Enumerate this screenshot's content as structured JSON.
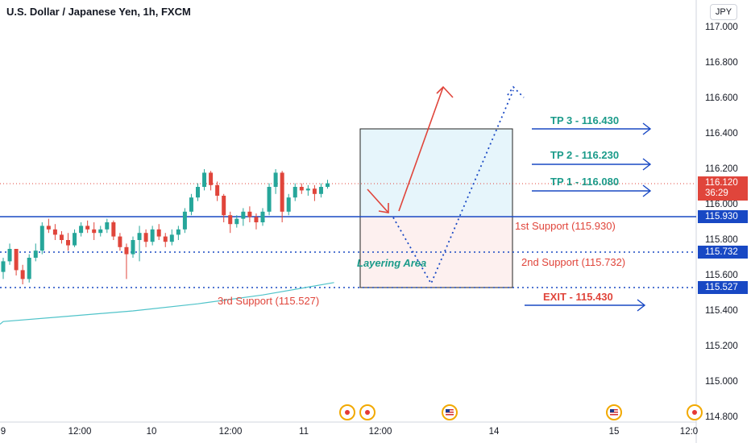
{
  "title": "U.S. Dollar / Japanese Yen, 1h, FXCM",
  "currency": "JPY",
  "colors": {
    "up": "#26a69a",
    "down": "#e0453b",
    "blue": "#1848c4",
    "ma": "#4fc3c9",
    "tp_text": "#1b9b8a",
    "support_text": "#e0453b"
  },
  "price_tags": [
    {
      "label": "116.120",
      "sub": "36:29",
      "value": 116.12,
      "color": "#e0453b"
    },
    {
      "label": "115.930",
      "value": 115.93,
      "color": "#1848c4"
    },
    {
      "label": "115.732",
      "value": 115.732,
      "color": "#1848c4"
    },
    {
      "label": "115.527",
      "value": 115.527,
      "color": "#1848c4"
    }
  ],
  "chart_data": {
    "type": "candlestick",
    "title": "U.S. Dollar / Japanese Yen, 1h, FXCM",
    "ylim": [
      114.75,
      117.15
    ],
    "yticks": [
      "117.000",
      "116.800",
      "116.600",
      "116.400",
      "116.200",
      "116.000",
      "115.800",
      "115.600",
      "115.400",
      "115.200",
      "115.000",
      "114.800"
    ],
    "ytick_values": [
      117.0,
      116.8,
      116.6,
      116.4,
      116.2,
      116.0,
      115.8,
      115.6,
      115.4,
      115.2,
      115.0,
      114.8
    ],
    "xticks": [
      "9",
      "12:00",
      "10",
      "12:00",
      "11",
      "12:00",
      "14",
      "15",
      "12:0"
    ],
    "xtick_values": [
      0,
      16,
      32,
      48,
      64,
      80,
      96,
      112,
      128
    ],
    "candles": [
      [
        115.62,
        115.7,
        115.58,
        115.68
      ],
      [
        115.68,
        115.78,
        115.66,
        115.75
      ],
      [
        115.75,
        115.74,
        115.6,
        115.63
      ],
      [
        115.63,
        115.66,
        115.55,
        115.58
      ],
      [
        115.58,
        115.72,
        115.56,
        115.7
      ],
      [
        115.7,
        115.78,
        115.68,
        115.74
      ],
      [
        115.74,
        115.9,
        115.72,
        115.88
      ],
      [
        115.88,
        115.92,
        115.84,
        115.86
      ],
      [
        115.86,
        115.89,
        115.8,
        115.83
      ],
      [
        115.83,
        115.85,
        115.78,
        115.8
      ],
      [
        115.8,
        115.84,
        115.74,
        115.77
      ],
      [
        115.77,
        115.86,
        115.76,
        115.84
      ],
      [
        115.84,
        115.9,
        115.82,
        115.88
      ],
      [
        115.88,
        115.91,
        115.84,
        115.86
      ],
      [
        115.86,
        115.9,
        115.8,
        115.84
      ],
      [
        115.84,
        115.88,
        115.82,
        115.86
      ],
      [
        115.86,
        115.92,
        115.84,
        115.9
      ],
      [
        115.9,
        115.91,
        115.8,
        115.82
      ],
      [
        115.82,
        115.84,
        115.74,
        115.76
      ],
      [
        115.76,
        115.78,
        115.58,
        115.72
      ],
      [
        115.72,
        115.82,
        115.7,
        115.8
      ],
      [
        115.8,
        115.88,
        115.68,
        115.84
      ],
      [
        115.84,
        115.86,
        115.76,
        115.79
      ],
      [
        115.79,
        115.88,
        115.77,
        115.86
      ],
      [
        115.86,
        115.89,
        115.8,
        115.82
      ],
      [
        115.82,
        115.84,
        115.76,
        115.79
      ],
      [
        115.79,
        115.86,
        115.77,
        115.83
      ],
      [
        115.83,
        115.88,
        115.8,
        115.86
      ],
      [
        115.86,
        115.98,
        115.84,
        115.96
      ],
      [
        115.96,
        116.06,
        115.94,
        116.04
      ],
      [
        116.04,
        116.12,
        116.02,
        116.1
      ],
      [
        116.1,
        116.2,
        116.08,
        116.18
      ],
      [
        116.18,
        116.19,
        116.08,
        116.11
      ],
      [
        116.11,
        116.13,
        116.02,
        116.05
      ],
      [
        116.05,
        116.06,
        115.9,
        115.94
      ],
      [
        115.94,
        115.96,
        115.84,
        115.89
      ],
      [
        115.89,
        115.94,
        115.87,
        115.92
      ],
      [
        115.92,
        115.98,
        115.88,
        115.96
      ],
      [
        115.96,
        115.99,
        115.9,
        115.93
      ],
      [
        115.93,
        115.95,
        115.86,
        115.9
      ],
      [
        115.9,
        115.98,
        115.88,
        115.96
      ],
      [
        115.96,
        116.12,
        115.94,
        116.1
      ],
      [
        116.1,
        116.2,
        116.06,
        116.18
      ],
      [
        116.18,
        116.19,
        115.9,
        115.96
      ],
      [
        115.96,
        116.06,
        115.94,
        116.04
      ],
      [
        116.04,
        116.12,
        116.02,
        116.1
      ],
      [
        116.1,
        116.12,
        116.06,
        116.08
      ],
      [
        116.08,
        116.11,
        116.05,
        116.09
      ],
      [
        116.09,
        116.11,
        116.02,
        116.06
      ],
      [
        116.06,
        116.12,
        116.04,
        116.1
      ],
      [
        116.1,
        116.14,
        116.09,
        116.12
      ]
    ],
    "moving_average": [
      [
        0,
        115.34
      ],
      [
        10,
        115.37
      ],
      [
        20,
        115.4
      ],
      [
        30,
        115.44
      ],
      [
        40,
        115.49
      ],
      [
        51,
        115.56
      ]
    ],
    "levels": [
      {
        "name": "1st Support",
        "value": 115.93,
        "style": "solid"
      },
      {
        "name": "2nd Support",
        "value": 115.732,
        "style": "dotted"
      },
      {
        "name": "3rd Support",
        "value": 115.527,
        "style": "dotted"
      },
      {
        "name": "current",
        "value": 116.12,
        "style": "dotted-red"
      }
    ],
    "zones": [
      {
        "name": "target-zone",
        "from": 115.93,
        "to": 116.43
      },
      {
        "name": "layering-zone",
        "from": 115.527,
        "to": 115.93
      }
    ]
  },
  "annotations": {
    "tp3": "TP 3 - 116.430",
    "tp2": "TP 2 - 116.230",
    "tp1": "TP 1 - 116.080",
    "support1": "1st Support (115.930)",
    "support2": "2nd Support (115.732)",
    "support3": "3rd Support (115.527)",
    "exit": "EXIT - 115.430",
    "layering": "Layering Area"
  },
  "events": [
    {
      "type": "dot-event"
    },
    {
      "type": "dot-event"
    },
    {
      "type": "us-flag-event"
    },
    {
      "type": "us-flag-event"
    },
    {
      "type": "partial-event"
    }
  ]
}
